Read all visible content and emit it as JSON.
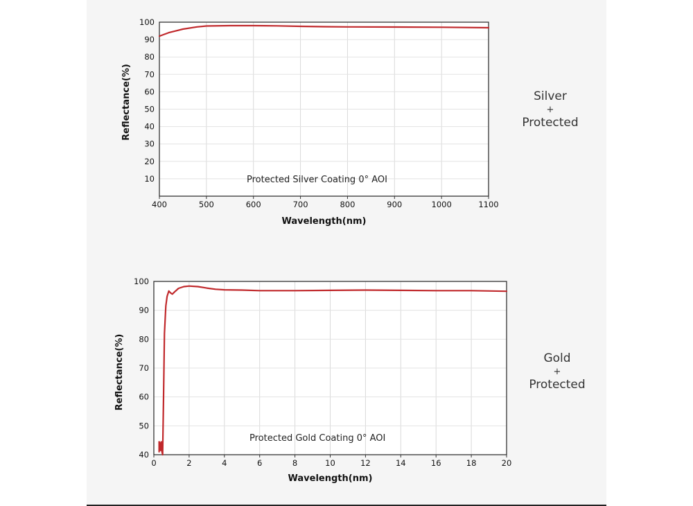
{
  "chart_data": [
    {
      "type": "line",
      "title": "",
      "annotation": "Protected Silver Coating  0°  AOI",
      "xlabel": "Wavelength(nm)",
      "ylabel": "Reflectance(%)",
      "xlim": [
        400,
        1100
      ],
      "ylim": [
        0,
        100
      ],
      "x_ticks": [
        400,
        500,
        600,
        700,
        800,
        900,
        1000,
        1100
      ],
      "x_tick_labels": [
        "400",
        "500",
        "600",
        "700",
        "800",
        "900",
        "1000",
        "1100"
      ],
      "y_ticks": [
        10,
        20,
        30,
        40,
        50,
        60,
        70,
        80,
        90,
        100
      ],
      "y_tick_labels": [
        "10",
        "20",
        "30",
        "40",
        "50",
        "60",
        "70",
        "80",
        "90",
        "100"
      ],
      "grid": true,
      "series": [
        {
          "name": "Protected Silver",
          "color": "#c0282b",
          "x": [
            400,
            420,
            450,
            480,
            500,
            550,
            600,
            650,
            700,
            750,
            800,
            900,
            1000,
            1100
          ],
          "y": [
            92.0,
            94.0,
            96.0,
            97.3,
            97.8,
            98.0,
            98.0,
            97.9,
            97.6,
            97.4,
            97.3,
            97.2,
            97.1,
            96.8
          ]
        }
      ],
      "side_label": [
        "Silver",
        "+",
        "Protected"
      ]
    },
    {
      "type": "line",
      "title": "",
      "annotation": "Protected Gold Coating  0°  AOI",
      "xlabel": "Wavelength(nm)",
      "ylabel": "Reflectance(%)",
      "xlim": [
        0,
        20
      ],
      "ylim": [
        40,
        100
      ],
      "x_ticks": [
        0,
        2,
        4,
        6,
        8,
        10,
        12,
        14,
        16,
        18,
        20
      ],
      "x_tick_labels": [
        "0",
        "2",
        "4",
        "6",
        "8",
        "10",
        "12",
        "14",
        "16",
        "18",
        "20"
      ],
      "y_ticks": [
        40,
        50,
        60,
        70,
        80,
        90,
        100
      ],
      "y_tick_labels": [
        "40",
        "50",
        "60",
        "70",
        "80",
        "90",
        "100"
      ],
      "grid": true,
      "series": [
        {
          "name": "Protected Gold",
          "color": "#c0282b",
          "x": [
            0.3,
            0.3,
            0.34,
            0.38,
            0.42,
            0.46,
            0.5,
            0.55,
            0.6,
            0.68,
            0.75,
            0.85,
            0.95,
            1.05,
            1.2,
            1.4,
            1.7,
            2.0,
            2.5,
            3.0,
            3.5,
            4.0,
            5.0,
            6.0,
            8.0,
            10.0,
            12.0,
            14.0,
            16.0,
            18.0,
            20.0
          ],
          "y": [
            41.0,
            44.5,
            44.0,
            41.5,
            44.5,
            41.0,
            40.0,
            60.0,
            82.0,
            91.5,
            94.8,
            96.7,
            96.0,
            95.6,
            96.5,
            97.6,
            98.2,
            98.4,
            98.2,
            97.7,
            97.3,
            97.1,
            97.0,
            96.8,
            96.8,
            96.9,
            97.0,
            96.9,
            96.8,
            96.8,
            96.6
          ]
        }
      ],
      "side_label": [
        "Gold",
        "+",
        "Protected"
      ]
    }
  ]
}
